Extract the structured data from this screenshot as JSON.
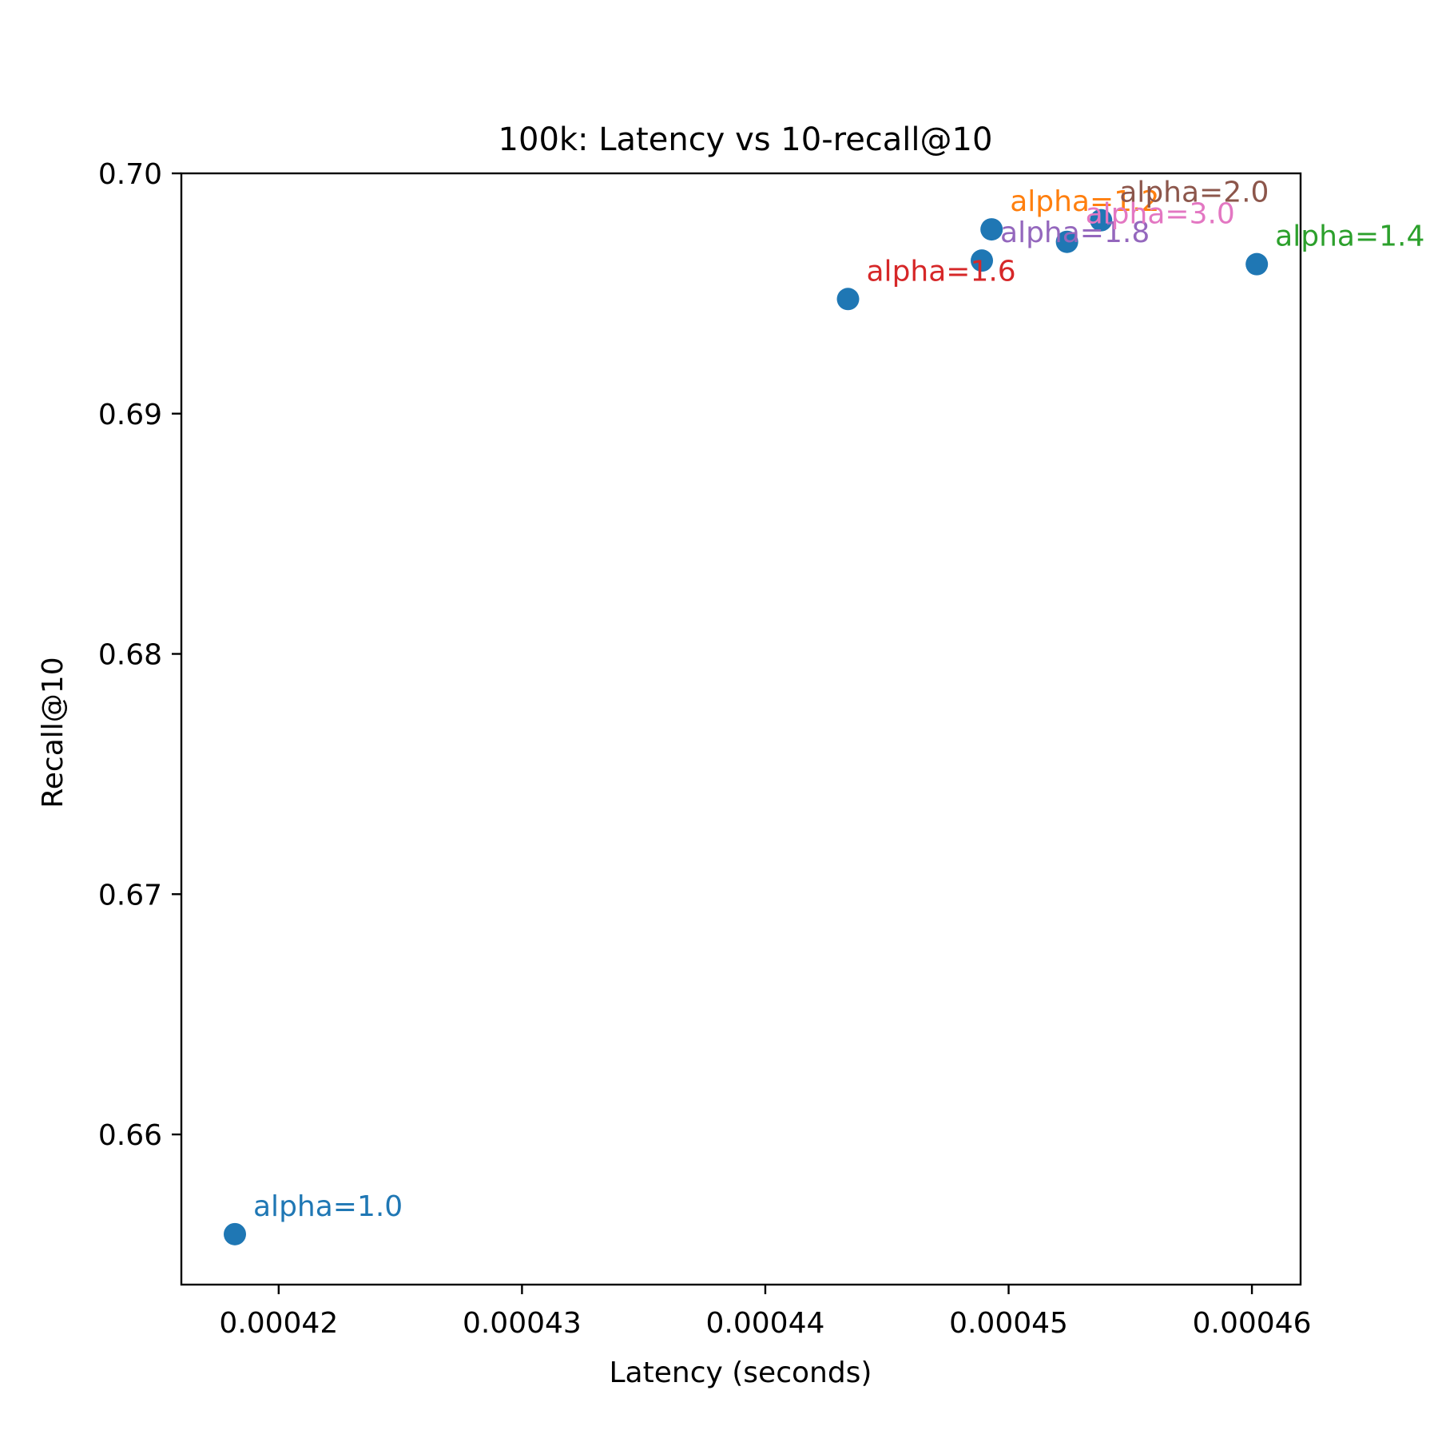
{
  "chart_data": {
    "type": "scatter",
    "title": "100k: Latency vs 10-recall@10",
    "xlabel": "Latency (seconds)",
    "ylabel": "Recall@10",
    "xlim": [
      0.000416,
      0.000462
    ],
    "ylim": [
      0.65375,
      0.7
    ],
    "xticks": [
      "0.00042",
      "0.00043",
      "0.00044",
      "0.00045",
      "0.00046"
    ],
    "xtick_values": [
      0.00042,
      0.00043,
      0.00044,
      0.00045,
      0.00046
    ],
    "yticks": [
      "0.66",
      "0.67",
      "0.68",
      "0.69",
      "0.70"
    ],
    "ytick_values": [
      0.66,
      0.67,
      0.68,
      0.69,
      0.7
    ],
    "grid": false,
    "marker_color": "#1f77b4",
    "points": [
      {
        "label": "alpha=1.0",
        "x": 0.0004182,
        "y": 0.65585,
        "color": "#1f77b4"
      },
      {
        "label": "alpha=1.2",
        "x": 0.0004493,
        "y": 0.69767,
        "color": "#ff7f0e"
      },
      {
        "label": "alpha=1.4",
        "x": 0.0004602,
        "y": 0.69622,
        "color": "#2ca02c"
      },
      {
        "label": "alpha=1.6",
        "x": 0.0004434,
        "y": 0.69477,
        "color": "#d62728"
      },
      {
        "label": "alpha=1.8",
        "x": 0.0004489,
        "y": 0.69637,
        "color": "#9467bd"
      },
      {
        "label": "alpha=2.0",
        "x": 0.0004538,
        "y": 0.69805,
        "color": "#8c564b"
      },
      {
        "label": "alpha=3.0",
        "x": 0.0004524,
        "y": 0.69715,
        "color": "#e377c2"
      }
    ]
  }
}
